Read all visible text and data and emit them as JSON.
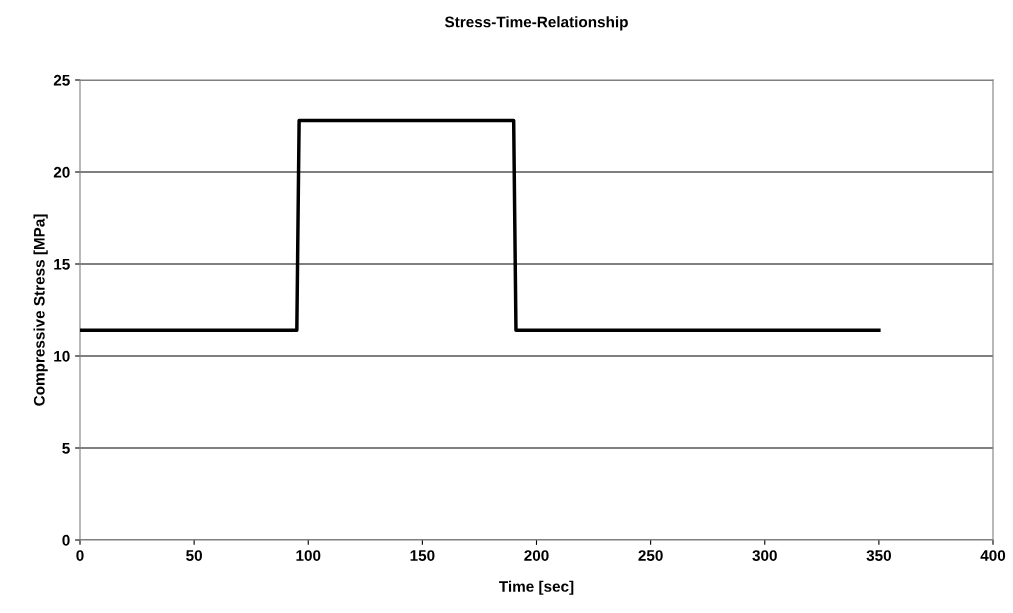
{
  "chart_data": {
    "type": "line",
    "title": "Stress-Time-Relationship",
    "xlabel": "Time [sec]",
    "ylabel": "Compressive Stress [MPa]",
    "series": [
      {
        "color": "#000000",
        "x": [
          0,
          95,
          96,
          190,
          191,
          350
        ],
        "values": [
          11.4,
          11.4,
          22.8,
          22.8,
          11.4,
          11.4
        ]
      }
    ],
    "xlim": [
      0,
      400
    ],
    "xticks": [
      0,
      50,
      100,
      150,
      200,
      250,
      300,
      350,
      400
    ],
    "ylim": [
      0,
      25
    ],
    "yticks": [
      0,
      5,
      10,
      15,
      20,
      25
    ],
    "grid": "y",
    "marker": "none",
    "line_style": "solid"
  }
}
